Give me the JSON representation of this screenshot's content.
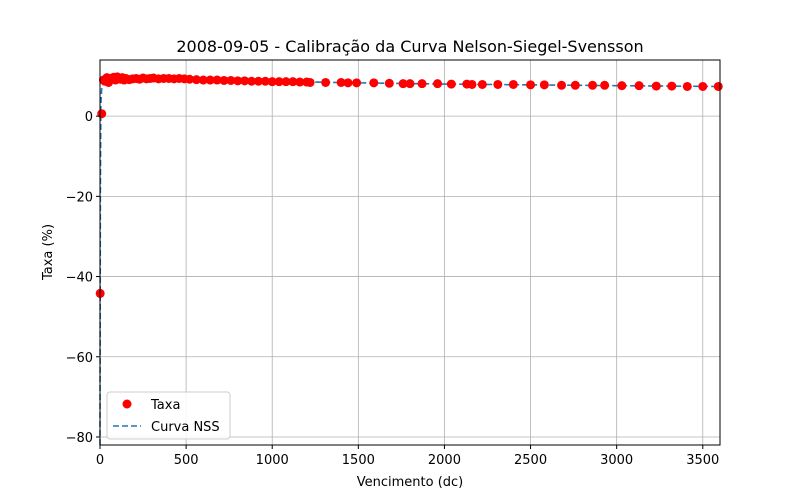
{
  "chart_data": {
    "type": "scatter",
    "title": "2008-09-05 - Calibração da Curva Nelson-Siegel-Svensson",
    "xlabel": "Vencimento (dc)",
    "ylabel": "Taxa (%)",
    "xlim": [
      0,
      3600
    ],
    "ylim": [
      -82,
      14
    ],
    "x_ticks": [
      0,
      500,
      1000,
      1500,
      2000,
      2500,
      3000,
      3500
    ],
    "y_ticks": [
      0,
      -20,
      -40,
      -60,
      -80
    ],
    "x_tick_labels": [
      "0",
      "500",
      "1000",
      "1500",
      "2000",
      "2500",
      "3000",
      "3500"
    ],
    "y_tick_labels": [
      "0",
      "−20",
      "−40",
      "−60",
      "−80"
    ],
    "grid": true,
    "legend_position": "lower-left",
    "colors": {
      "points": "#ff0000",
      "curve": "#1f77b4",
      "grid": "#b0b0b0"
    },
    "series": [
      {
        "name": "Taxa",
        "kind": "scatter",
        "points": [
          [
            1,
            -44.2
          ],
          [
            10,
            0.6
          ],
          [
            20,
            9.0
          ],
          [
            30,
            8.7
          ],
          [
            40,
            9.6
          ],
          [
            50,
            8.4
          ],
          [
            60,
            9.3
          ],
          [
            70,
            9.5
          ],
          [
            80,
            9.7
          ],
          [
            90,
            9.0
          ],
          [
            100,
            9.8
          ],
          [
            110,
            9.4
          ],
          [
            120,
            9.2
          ],
          [
            130,
            9.6
          ],
          [
            140,
            9.0
          ],
          [
            150,
            9.4
          ],
          [
            170,
            9.1
          ],
          [
            190,
            9.3
          ],
          [
            210,
            9.4
          ],
          [
            230,
            9.2
          ],
          [
            250,
            9.5
          ],
          [
            270,
            9.3
          ],
          [
            290,
            9.4
          ],
          [
            310,
            9.5
          ],
          [
            340,
            9.3
          ],
          [
            370,
            9.4
          ],
          [
            400,
            9.4
          ],
          [
            430,
            9.3
          ],
          [
            460,
            9.4
          ],
          [
            490,
            9.3
          ],
          [
            520,
            9.2
          ],
          [
            560,
            9.1
          ],
          [
            600,
            9.0
          ],
          [
            640,
            9.0
          ],
          [
            680,
            9.0
          ],
          [
            720,
            8.9
          ],
          [
            760,
            8.9
          ],
          [
            800,
            8.8
          ],
          [
            840,
            8.8
          ],
          [
            880,
            8.7
          ],
          [
            920,
            8.7
          ],
          [
            960,
            8.7
          ],
          [
            1000,
            8.6
          ],
          [
            1040,
            8.6
          ],
          [
            1080,
            8.6
          ],
          [
            1120,
            8.6
          ],
          [
            1160,
            8.5
          ],
          [
            1200,
            8.5
          ],
          [
            1220,
            8.4
          ],
          [
            1310,
            8.4
          ],
          [
            1400,
            8.4
          ],
          [
            1440,
            8.3
          ],
          [
            1490,
            8.3
          ],
          [
            1590,
            8.3
          ],
          [
            1680,
            8.2
          ],
          [
            1760,
            8.1
          ],
          [
            1800,
            8.1
          ],
          [
            1870,
            8.1
          ],
          [
            1960,
            8.1
          ],
          [
            2040,
            8.0
          ],
          [
            2130,
            8.0
          ],
          [
            2160,
            7.9
          ],
          [
            2220,
            7.9
          ],
          [
            2310,
            7.9
          ],
          [
            2400,
            7.9
          ],
          [
            2500,
            7.8
          ],
          [
            2580,
            7.8
          ],
          [
            2680,
            7.7
          ],
          [
            2760,
            7.7
          ],
          [
            2860,
            7.7
          ],
          [
            2930,
            7.7
          ],
          [
            3030,
            7.6
          ],
          [
            3130,
            7.6
          ],
          [
            3230,
            7.5
          ],
          [
            3320,
            7.5
          ],
          [
            3410,
            7.4
          ],
          [
            3500,
            7.4
          ],
          [
            3590,
            7.4
          ]
        ]
      },
      {
        "name": "Curva NSS",
        "kind": "line",
        "style": "dashed",
        "points": [
          [
            0,
            -82
          ],
          [
            2,
            -20
          ],
          [
            5,
            3.0
          ],
          [
            10,
            7.0
          ],
          [
            20,
            8.6
          ],
          [
            40,
            9.1
          ],
          [
            80,
            9.3
          ],
          [
            150,
            9.4
          ],
          [
            300,
            9.4
          ],
          [
            500,
            9.2
          ],
          [
            800,
            8.9
          ],
          [
            1000,
            8.7
          ],
          [
            1500,
            8.3
          ],
          [
            2000,
            8.0
          ],
          [
            2500,
            7.8
          ],
          [
            3000,
            7.6
          ],
          [
            3600,
            7.4
          ]
        ]
      }
    ]
  }
}
